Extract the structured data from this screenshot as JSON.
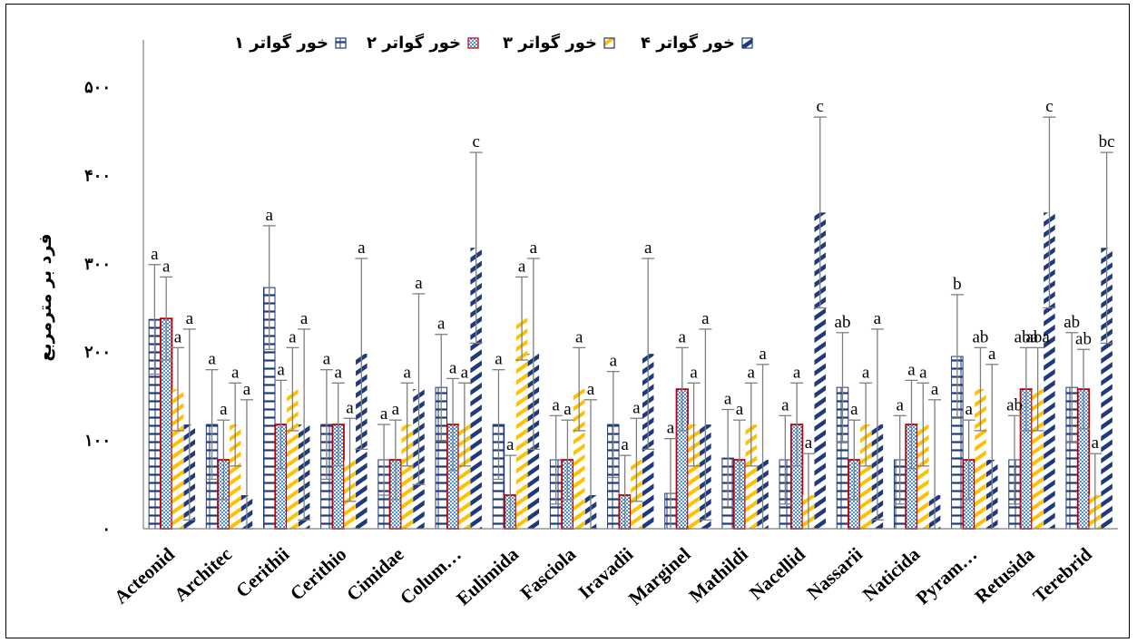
{
  "chart_data": {
    "type": "bar",
    "title": "",
    "xlabel": "",
    "ylabel": "فرد بر مترمربع",
    "ylim": [
      0,
      500
    ],
    "yticks": [
      {
        "value": 0,
        "label": "۰"
      },
      {
        "value": 100,
        "label": "۱۰۰"
      },
      {
        "value": 200,
        "label": "۲۰۰"
      },
      {
        "value": 300,
        "label": "۳۰۰"
      },
      {
        "value": 400,
        "label": "۴۰۰"
      },
      {
        "value": 500,
        "label": "۵۰۰"
      }
    ],
    "grid": false,
    "legend_position": "top",
    "categories": [
      "Acteonid",
      "Architec",
      "Cerithii",
      "Cerithio",
      "Cimidae",
      "Colum…",
      "Eulimida",
      "Fasciola",
      "Iravadii",
      "Marginel",
      "Mathildi",
      "Nacellid",
      "Nassarii",
      "Naticida",
      "Pyram…",
      "Retusida",
      "Terebrid"
    ],
    "series": [
      {
        "name": "خور گواتر ۱",
        "color": "#1f3a7a",
        "values": [
          237,
          118,
          273,
          118,
          78,
          160,
          118,
          78,
          118,
          40,
          80,
          78,
          160,
          78,
          195,
          78,
          160
        ],
        "errors": [
          62,
          62,
          70,
          62,
          40,
          60,
          62,
          50,
          60,
          62,
          55,
          50,
          62,
          50,
          70,
          50,
          62
        ],
        "letters": [
          "a",
          "a",
          "a",
          "a",
          "a",
          "a",
          "a",
          "a",
          "a",
          "a",
          "a",
          "a",
          "ab",
          "a",
          "b",
          "ab",
          "ab"
        ]
      },
      {
        "name": "خور گواتر ۲",
        "color": "#c00000",
        "values": [
          238,
          78,
          118,
          118,
          78,
          118,
          38,
          78,
          38,
          158,
          78,
          118,
          78,
          118,
          78,
          158,
          158
        ],
        "errors": [
          47,
          45,
          50,
          47,
          45,
          52,
          45,
          45,
          45,
          47,
          45,
          47,
          45,
          50,
          45,
          47,
          45
        ],
        "letters": [
          "a",
          "a",
          "a",
          "a",
          "a",
          "a",
          "a",
          "a",
          "a",
          "a",
          "a",
          "a",
          "a",
          "a",
          "a",
          "aba",
          "ab"
        ]
      },
      {
        "name": "خور گواتر ۳",
        "color": "#ffc000",
        "values": [
          158,
          118,
          158,
          78,
          118,
          118,
          238,
          158,
          78,
          118,
          118,
          38,
          118,
          118,
          158,
          158,
          38
        ],
        "errors": [
          47,
          47,
          47,
          47,
          47,
          47,
          47,
          47,
          47,
          47,
          47,
          47,
          47,
          47,
          47,
          47,
          47
        ],
        "letters": [
          "a",
          "a",
          "a",
          "a",
          "a",
          "a",
          "a",
          "a",
          "a",
          "a",
          "a",
          "a",
          "a",
          "a",
          "ab",
          "aba",
          "a"
        ]
      },
      {
        "name": "خور گواتر ۴",
        "color": "#1f3a7a",
        "values": [
          118,
          38,
          118,
          198,
          158,
          318,
          198,
          38,
          198,
          118,
          78,
          358,
          118,
          38,
          78,
          358,
          318
        ],
        "errors": [
          108,
          108,
          108,
          108,
          108,
          108,
          108,
          108,
          108,
          108,
          108,
          108,
          108,
          108,
          108,
          108,
          108
        ],
        "letters": [
          "a",
          "a",
          "a",
          "a",
          "a",
          "c",
          "a",
          "a",
          "a",
          "a",
          "a",
          "c",
          "a",
          "a",
          "a",
          "c",
          "bc"
        ]
      }
    ]
  }
}
